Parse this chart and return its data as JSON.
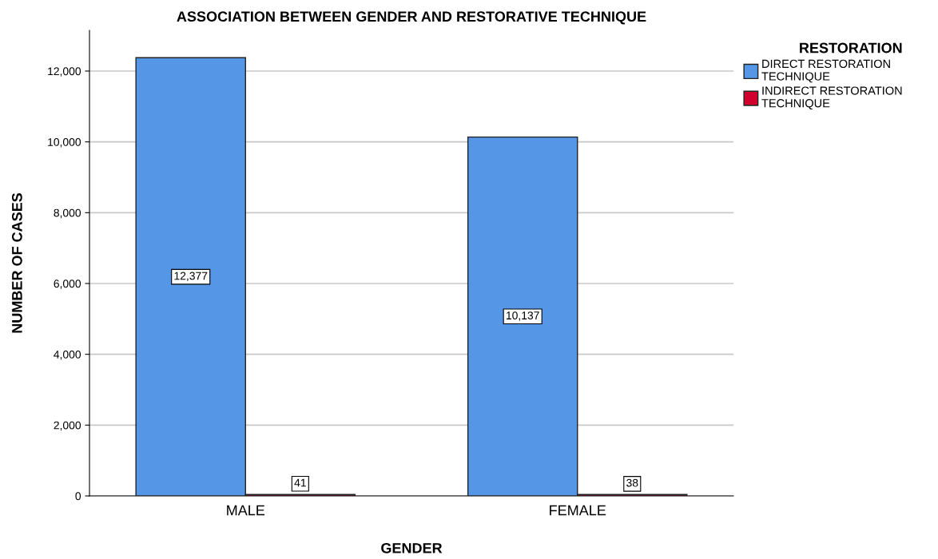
{
  "chart_data": {
    "type": "bar",
    "title": "ASSOCIATION BETWEEN GENDER AND RESTORATIVE TECHNIQUE",
    "xlabel": "GENDER",
    "ylabel": "NUMBER OF CASES",
    "legend_title": "RESTORATION",
    "categories": [
      "MALE",
      "FEMALE"
    ],
    "series": [
      {
        "name": "DIRECT RESTORATION\nTECHNIQUE",
        "color": "#5596e6",
        "values": [
          12377,
          10137
        ],
        "value_labels": [
          "12,377",
          "10,137"
        ]
      },
      {
        "name": "INDIRECT RESTORATION\nTECHNIQUE",
        "color": "#d2002d",
        "values": [
          41,
          38
        ],
        "value_labels": [
          "41",
          "38"
        ]
      }
    ],
    "ylim": [
      0,
      13150
    ],
    "yticks": [
      {
        "value": 0,
        "label": "0"
      },
      {
        "value": 2000,
        "label": "2,000"
      },
      {
        "value": 4000,
        "label": "4,000"
      },
      {
        "value": 6000,
        "label": "6,000"
      },
      {
        "value": 8000,
        "label": "8,000"
      },
      {
        "value": 10000,
        "label": "10,000"
      },
      {
        "value": 12000,
        "label": "12,000"
      }
    ],
    "grid": "y",
    "legend": "top right"
  }
}
